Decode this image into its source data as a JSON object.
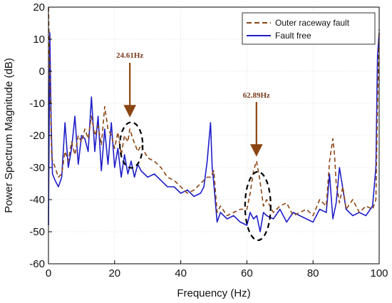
{
  "chart_data": {
    "type": "line",
    "xlabel": "Frequency (Hz)",
    "ylabel": "Power Spectrum Magnitude (dB)",
    "xlim": [
      0,
      100
    ],
    "ylim": [
      -60,
      20
    ],
    "xticks": [
      "0",
      "20",
      "40",
      "60",
      "80",
      "100"
    ],
    "yticks": [
      "20",
      "10",
      "0",
      "-10",
      "-20",
      "-30",
      "-40",
      "-50",
      "-60"
    ],
    "grid": true,
    "legend_position": "top-right",
    "colors": {
      "fault": "#8b4513",
      "free": "#1f1fc8",
      "annotation": "#8b4513",
      "ellipse": "#000000"
    },
    "series": [
      {
        "name": "Outer raceway fault",
        "style": "dashed",
        "x": [
          0,
          0.5,
          1,
          2,
          3,
          4,
          5,
          6,
          7,
          8,
          9,
          10,
          11,
          12,
          13,
          14,
          15,
          16,
          17,
          18,
          19,
          20,
          21,
          22,
          23,
          24,
          24.6,
          25.5,
          27,
          28,
          30,
          32,
          34,
          36,
          38,
          40,
          42,
          44,
          46,
          48,
          49,
          50,
          51,
          52,
          54,
          56,
          58,
          60,
          61,
          62,
          62.9,
          63.8,
          65,
          66,
          68,
          70,
          72,
          74,
          76,
          78,
          80,
          82,
          84,
          85,
          86,
          86.5,
          87,
          88,
          89,
          90,
          92,
          94,
          96,
          98,
          99,
          99.5,
          100
        ],
        "y": [
          20,
          -5,
          -27,
          -30,
          -33,
          -32,
          -25,
          -28,
          -22,
          -26,
          -20,
          -22,
          -18,
          -21,
          -14,
          -20,
          -17,
          -23,
          -11,
          -18,
          -20,
          -24,
          -19,
          -26,
          -20,
          -22,
          -18,
          -21,
          -25,
          -23,
          -27,
          -28,
          -30,
          -33,
          -34,
          -36,
          -38,
          -37,
          -35,
          -33,
          -33,
          -31,
          -44,
          -42,
          -45,
          -44,
          -43,
          -43,
          -38,
          -31,
          -28,
          -33,
          -42,
          -40,
          -44,
          -42,
          -41,
          -45,
          -44,
          -43,
          -45,
          -40,
          -42,
          -28,
          -21,
          -26,
          -35,
          -41,
          -36,
          -43,
          -40,
          -44,
          -42,
          -43,
          -40,
          -10,
          13
        ]
      },
      {
        "name": "Fault free",
        "style": "solid",
        "x": [
          0,
          0.4,
          0.8,
          1.2,
          2,
          3,
          4,
          5,
          6,
          7,
          8,
          9,
          10,
          11,
          12,
          13,
          14,
          15,
          16,
          17,
          18,
          19,
          20,
          21,
          22,
          23,
          24,
          25,
          26,
          27,
          28,
          30,
          32,
          34,
          36,
          38,
          40,
          42,
          44,
          46,
          47,
          48,
          49,
          49.5,
          50,
          51,
          52,
          54,
          56,
          58,
          60,
          61,
          62,
          63,
          64,
          65,
          66,
          68,
          70,
          72,
          74,
          76,
          78,
          80,
          82,
          84,
          85,
          86,
          87,
          88,
          90,
          92,
          94,
          96,
          98,
          99,
          99.5,
          100
        ],
        "y": [
          -48,
          12,
          -15,
          -32,
          -34,
          -36,
          -33,
          -16,
          -30,
          -24,
          -14,
          -29,
          -20,
          -21,
          -25,
          -8,
          -25,
          -14,
          -31,
          -18,
          -29,
          -16,
          -30,
          -24,
          -33,
          -26,
          -32,
          -28,
          -33,
          -29,
          -31,
          -33,
          -32,
          -34,
          -36,
          -36,
          -38,
          -37,
          -39,
          -38,
          -36,
          -28,
          -16,
          -30,
          -35,
          -47,
          -44,
          -46,
          -45,
          -47,
          -48,
          -44,
          -46,
          -45,
          -50,
          -44,
          -45,
          -46,
          -43,
          -47,
          -44,
          -45,
          -46,
          -47,
          -43,
          -44,
          -32,
          -46,
          -41,
          -30,
          -43,
          -45,
          -44,
          -45,
          -42,
          -30,
          5,
          12
        ]
      }
    ],
    "annotations": [
      {
        "text": "24.61Hz",
        "x": 24.61
      },
      {
        "text": "62.89Hz",
        "x": 62.89
      }
    ]
  }
}
